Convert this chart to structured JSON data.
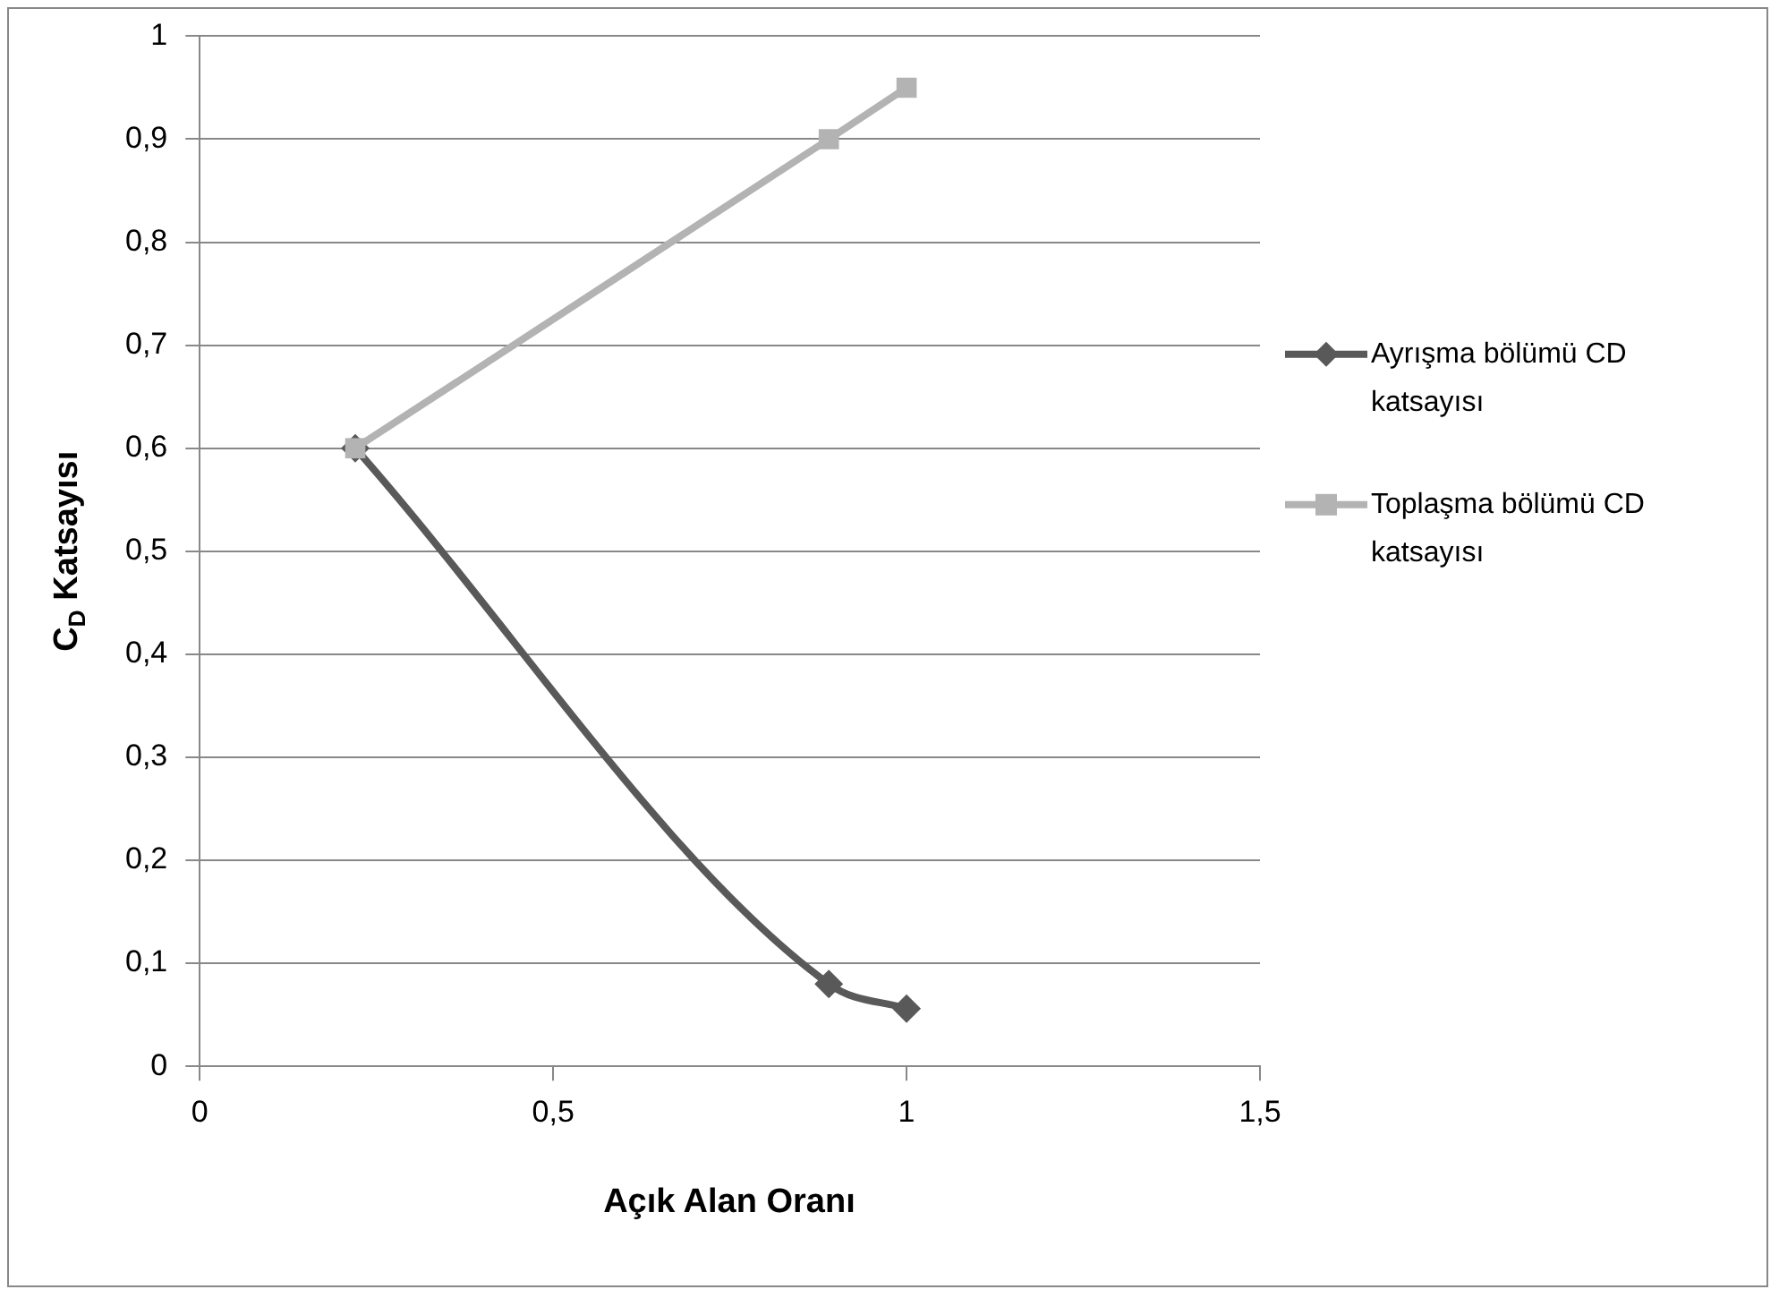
{
  "chart_data": {
    "type": "line",
    "xlabel": "Açık Alan Oranı",
    "ylabel": "C$_{D}$ Katsayısı",
    "xlim": [
      0,
      1.5
    ],
    "xticks": [
      {
        "value": 0,
        "label": "0"
      },
      {
        "value": 0.5,
        "label": "0,5"
      },
      {
        "value": 1,
        "label": "1"
      },
      {
        "value": 1.5,
        "label": "1,5"
      }
    ],
    "ylim": [
      0,
      1
    ],
    "yticks": [
      {
        "value": 0,
        "label": "0"
      },
      {
        "value": 0.1,
        "label": "0,1"
      },
      {
        "value": 0.2,
        "label": "0,2"
      },
      {
        "value": 0.3,
        "label": "0,3"
      },
      {
        "value": 0.4,
        "label": "0,4"
      },
      {
        "value": 0.5,
        "label": "0,5"
      },
      {
        "value": 0.6,
        "label": "0,6"
      },
      {
        "value": 0.7,
        "label": "0,7"
      },
      {
        "value": 0.8,
        "label": "0,8"
      },
      {
        "value": 0.9,
        "label": "0,9"
      },
      {
        "value": 1,
        "label": "1"
      }
    ],
    "grid": "y",
    "legend": "right",
    "series": [
      {
        "name": "Ayrışma bölümü CD katsayısı",
        "color": "#595959",
        "marker": "diamond",
        "x": [
          0.22,
          0.89,
          1.0
        ],
        "values": [
          0.6,
          0.08,
          0.056
        ]
      },
      {
        "name": "Toplaşma bölümü CD katsayısı",
        "color": "#b3b3b3",
        "marker": "square",
        "x": [
          0.22,
          0.89,
          1.0
        ],
        "values": [
          0.6,
          0.9,
          0.95
        ]
      }
    ]
  }
}
